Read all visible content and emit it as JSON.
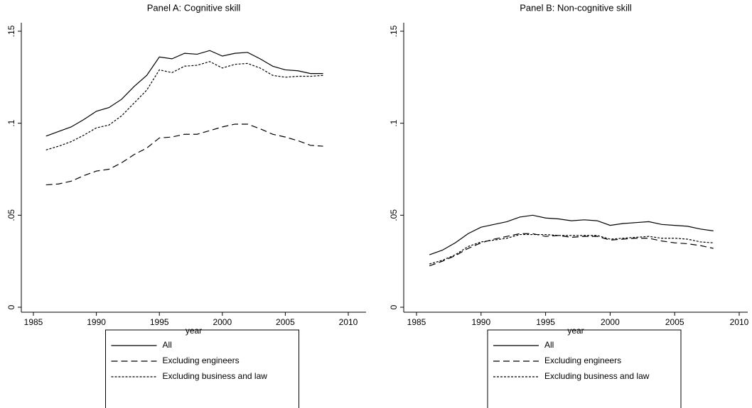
{
  "chart_data": [
    {
      "type": "line",
      "title": "Panel A: Cognitive skill",
      "x_label": "year",
      "x": [
        1986,
        1987,
        1988,
        1989,
        1990,
        1991,
        1992,
        1993,
        1994,
        1995,
        1996,
        1997,
        1998,
        1999,
        2000,
        2001,
        2002,
        2003,
        2004,
        2005,
        2006,
        2007,
        2008
      ],
      "xlim": [
        1985,
        2010
      ],
      "xticks": [
        1985,
        1990,
        1995,
        2000,
        2005,
        2010
      ],
      "ylim": [
        0,
        0.15
      ],
      "yticks": [
        {
          "value": 0,
          "label": "0"
        },
        {
          "value": 0.05,
          "label": ".05"
        },
        {
          "value": 0.1,
          "label": ".1"
        },
        {
          "value": 0.15,
          "label": ".15"
        }
      ],
      "legend": "bottom",
      "series": [
        {
          "name": "All",
          "color": "#000000",
          "line_style": "solid",
          "values": [
            0.093,
            0.0955,
            0.098,
            0.102,
            0.1065,
            0.1085,
            0.113,
            0.12,
            0.126,
            0.136,
            0.135,
            0.138,
            0.1375,
            0.1395,
            0.1365,
            0.138,
            0.1385,
            0.135,
            0.131,
            0.129,
            0.1285,
            0.127,
            0.127
          ]
        },
        {
          "name": "Excluding engineers",
          "color": "#000000",
          "line_style": "dashed",
          "values": [
            0.0665,
            0.067,
            0.0685,
            0.0715,
            0.074,
            0.075,
            0.0785,
            0.083,
            0.0865,
            0.092,
            0.0925,
            0.094,
            0.094,
            0.096,
            0.098,
            0.0995,
            0.0995,
            0.097,
            0.094,
            0.0925,
            0.0905,
            0.088,
            0.0875
          ]
        },
        {
          "name": "Excluding business and law",
          "color": "#000000",
          "line_style": "dotted",
          "values": [
            0.0855,
            0.0875,
            0.09,
            0.0935,
            0.0975,
            0.099,
            0.104,
            0.111,
            0.118,
            0.129,
            0.1275,
            0.131,
            0.1315,
            0.1335,
            0.13,
            0.132,
            0.1325,
            0.13,
            0.126,
            0.125,
            0.1255,
            0.1255,
            0.126
          ]
        }
      ]
    },
    {
      "type": "line",
      "title": "Panel B: Non-cognitive skill",
      "x_label": "year",
      "x": [
        1986,
        1987,
        1988,
        1989,
        1990,
        1991,
        1992,
        1993,
        1994,
        1995,
        1996,
        1997,
        1998,
        1999,
        2000,
        2001,
        2002,
        2003,
        2004,
        2005,
        2006,
        2007,
        2008
      ],
      "xlim": [
        1985,
        2010
      ],
      "xticks": [
        1985,
        1990,
        1995,
        2000,
        2005,
        2010
      ],
      "ylim": [
        0,
        0.15
      ],
      "yticks": [
        {
          "value": 0,
          "label": "0"
        },
        {
          "value": 0.05,
          "label": ".05"
        },
        {
          "value": 0.1,
          "label": ".1"
        },
        {
          "value": 0.15,
          "label": ".15"
        }
      ],
      "legend": "bottom",
      "series": [
        {
          "name": "All",
          "color": "#000000",
          "line_style": "solid",
          "values": [
            0.0285,
            0.031,
            0.035,
            0.04,
            0.0435,
            0.045,
            0.0465,
            0.049,
            0.05,
            0.0485,
            0.048,
            0.047,
            0.0475,
            0.047,
            0.0445,
            0.0455,
            0.046,
            0.0465,
            0.045,
            0.0445,
            0.044,
            0.0425,
            0.0415
          ]
        },
        {
          "name": "Excluding engineers",
          "color": "#000000",
          "line_style": "dashed",
          "values": [
            0.0225,
            0.025,
            0.028,
            0.032,
            0.035,
            0.037,
            0.0385,
            0.04,
            0.04,
            0.0385,
            0.039,
            0.038,
            0.0385,
            0.0385,
            0.0365,
            0.037,
            0.0375,
            0.0375,
            0.036,
            0.035,
            0.0345,
            0.0335,
            0.032
          ]
        },
        {
          "name": "Excluding business and law",
          "color": "#000000",
          "line_style": "dotted",
          "values": [
            0.0235,
            0.0255,
            0.0285,
            0.033,
            0.0355,
            0.0365,
            0.0375,
            0.0395,
            0.0395,
            0.0395,
            0.039,
            0.039,
            0.039,
            0.039,
            0.037,
            0.0375,
            0.038,
            0.0385,
            0.0375,
            0.0375,
            0.037,
            0.0355,
            0.035
          ]
        }
      ]
    }
  ]
}
